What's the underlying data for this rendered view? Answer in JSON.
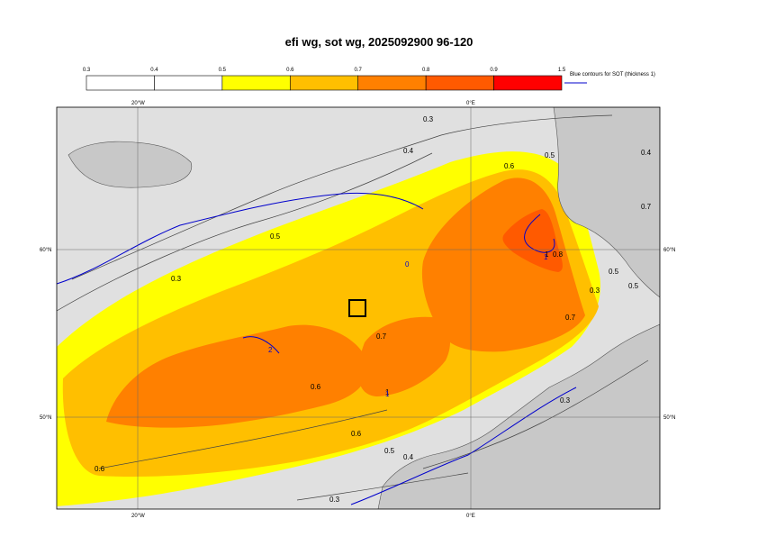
{
  "title": "efi wg, sot wg, 2025092900 96-120",
  "legend": {
    "ticks": [
      "0.3",
      "0.4",
      "0.5",
      "0.6",
      "0.7",
      "0.8",
      "0.9",
      "1.5"
    ],
    "colors": [
      "#ffffff",
      "#ffffff",
      "#ffff00",
      "#ffbf00",
      "#ff8000",
      "#ff5a00",
      "#ff0000"
    ],
    "sot_note": "Blue contours for SOT (thickness 1)"
  },
  "axes": {
    "top_lon": [
      "20°W",
      "0°E"
    ],
    "bottom_lon": [
      "20°W",
      "0°E"
    ],
    "left_lat": [
      "60°N",
      "50°N"
    ],
    "right_lat": [
      "60°N",
      "50°N"
    ]
  },
  "contour_labels": [
    "0.3",
    "0.4",
    "0.5",
    "0.6",
    "0.7",
    "0.8",
    "1",
    "0.5",
    "0.6",
    "0.3",
    "0.4",
    "0.7",
    "1",
    "0.5",
    "0.6",
    "0.6",
    "0.3",
    "0.4",
    "0.5",
    "0.3",
    "0.3",
    "0.5",
    "0.7"
  ],
  "sot_labels": [
    "1",
    "2",
    "1",
    "0"
  ],
  "colors": {
    "sea": "#e0e0e0",
    "land": "#c8c8c8",
    "sot_contour": "#0000cc"
  }
}
